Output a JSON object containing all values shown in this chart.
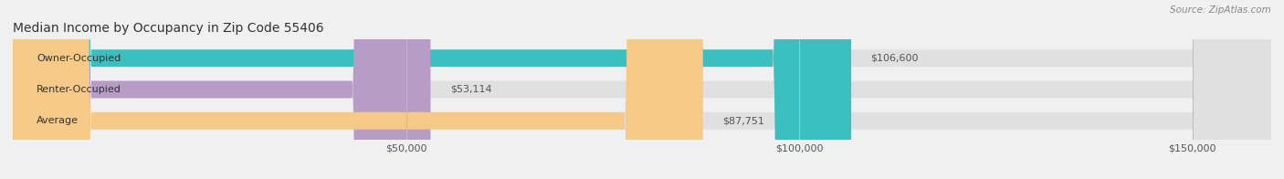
{
  "title": "Median Income by Occupancy in Zip Code 55406",
  "source": "Source: ZipAtlas.com",
  "categories": [
    "Owner-Occupied",
    "Renter-Occupied",
    "Average"
  ],
  "values": [
    106600,
    53114,
    87751
  ],
  "labels": [
    "$106,600",
    "$53,114",
    "$87,751"
  ],
  "bar_colors": [
    "#3bbfbf",
    "#b89cc8",
    "#f5c987"
  ],
  "background_color": "#f0f0f0",
  "bar_bg_color": "#e0e0e0",
  "xlim": [
    0,
    160000
  ],
  "xticks": [
    50000,
    100000,
    150000
  ],
  "xtick_labels": [
    "$50,000",
    "$100,000",
    "$150,000"
  ],
  "title_fontsize": 10,
  "label_fontsize": 8,
  "tick_fontsize": 8,
  "bar_height": 0.55,
  "figsize": [
    14.06,
    1.96
  ],
  "dpi": 100
}
